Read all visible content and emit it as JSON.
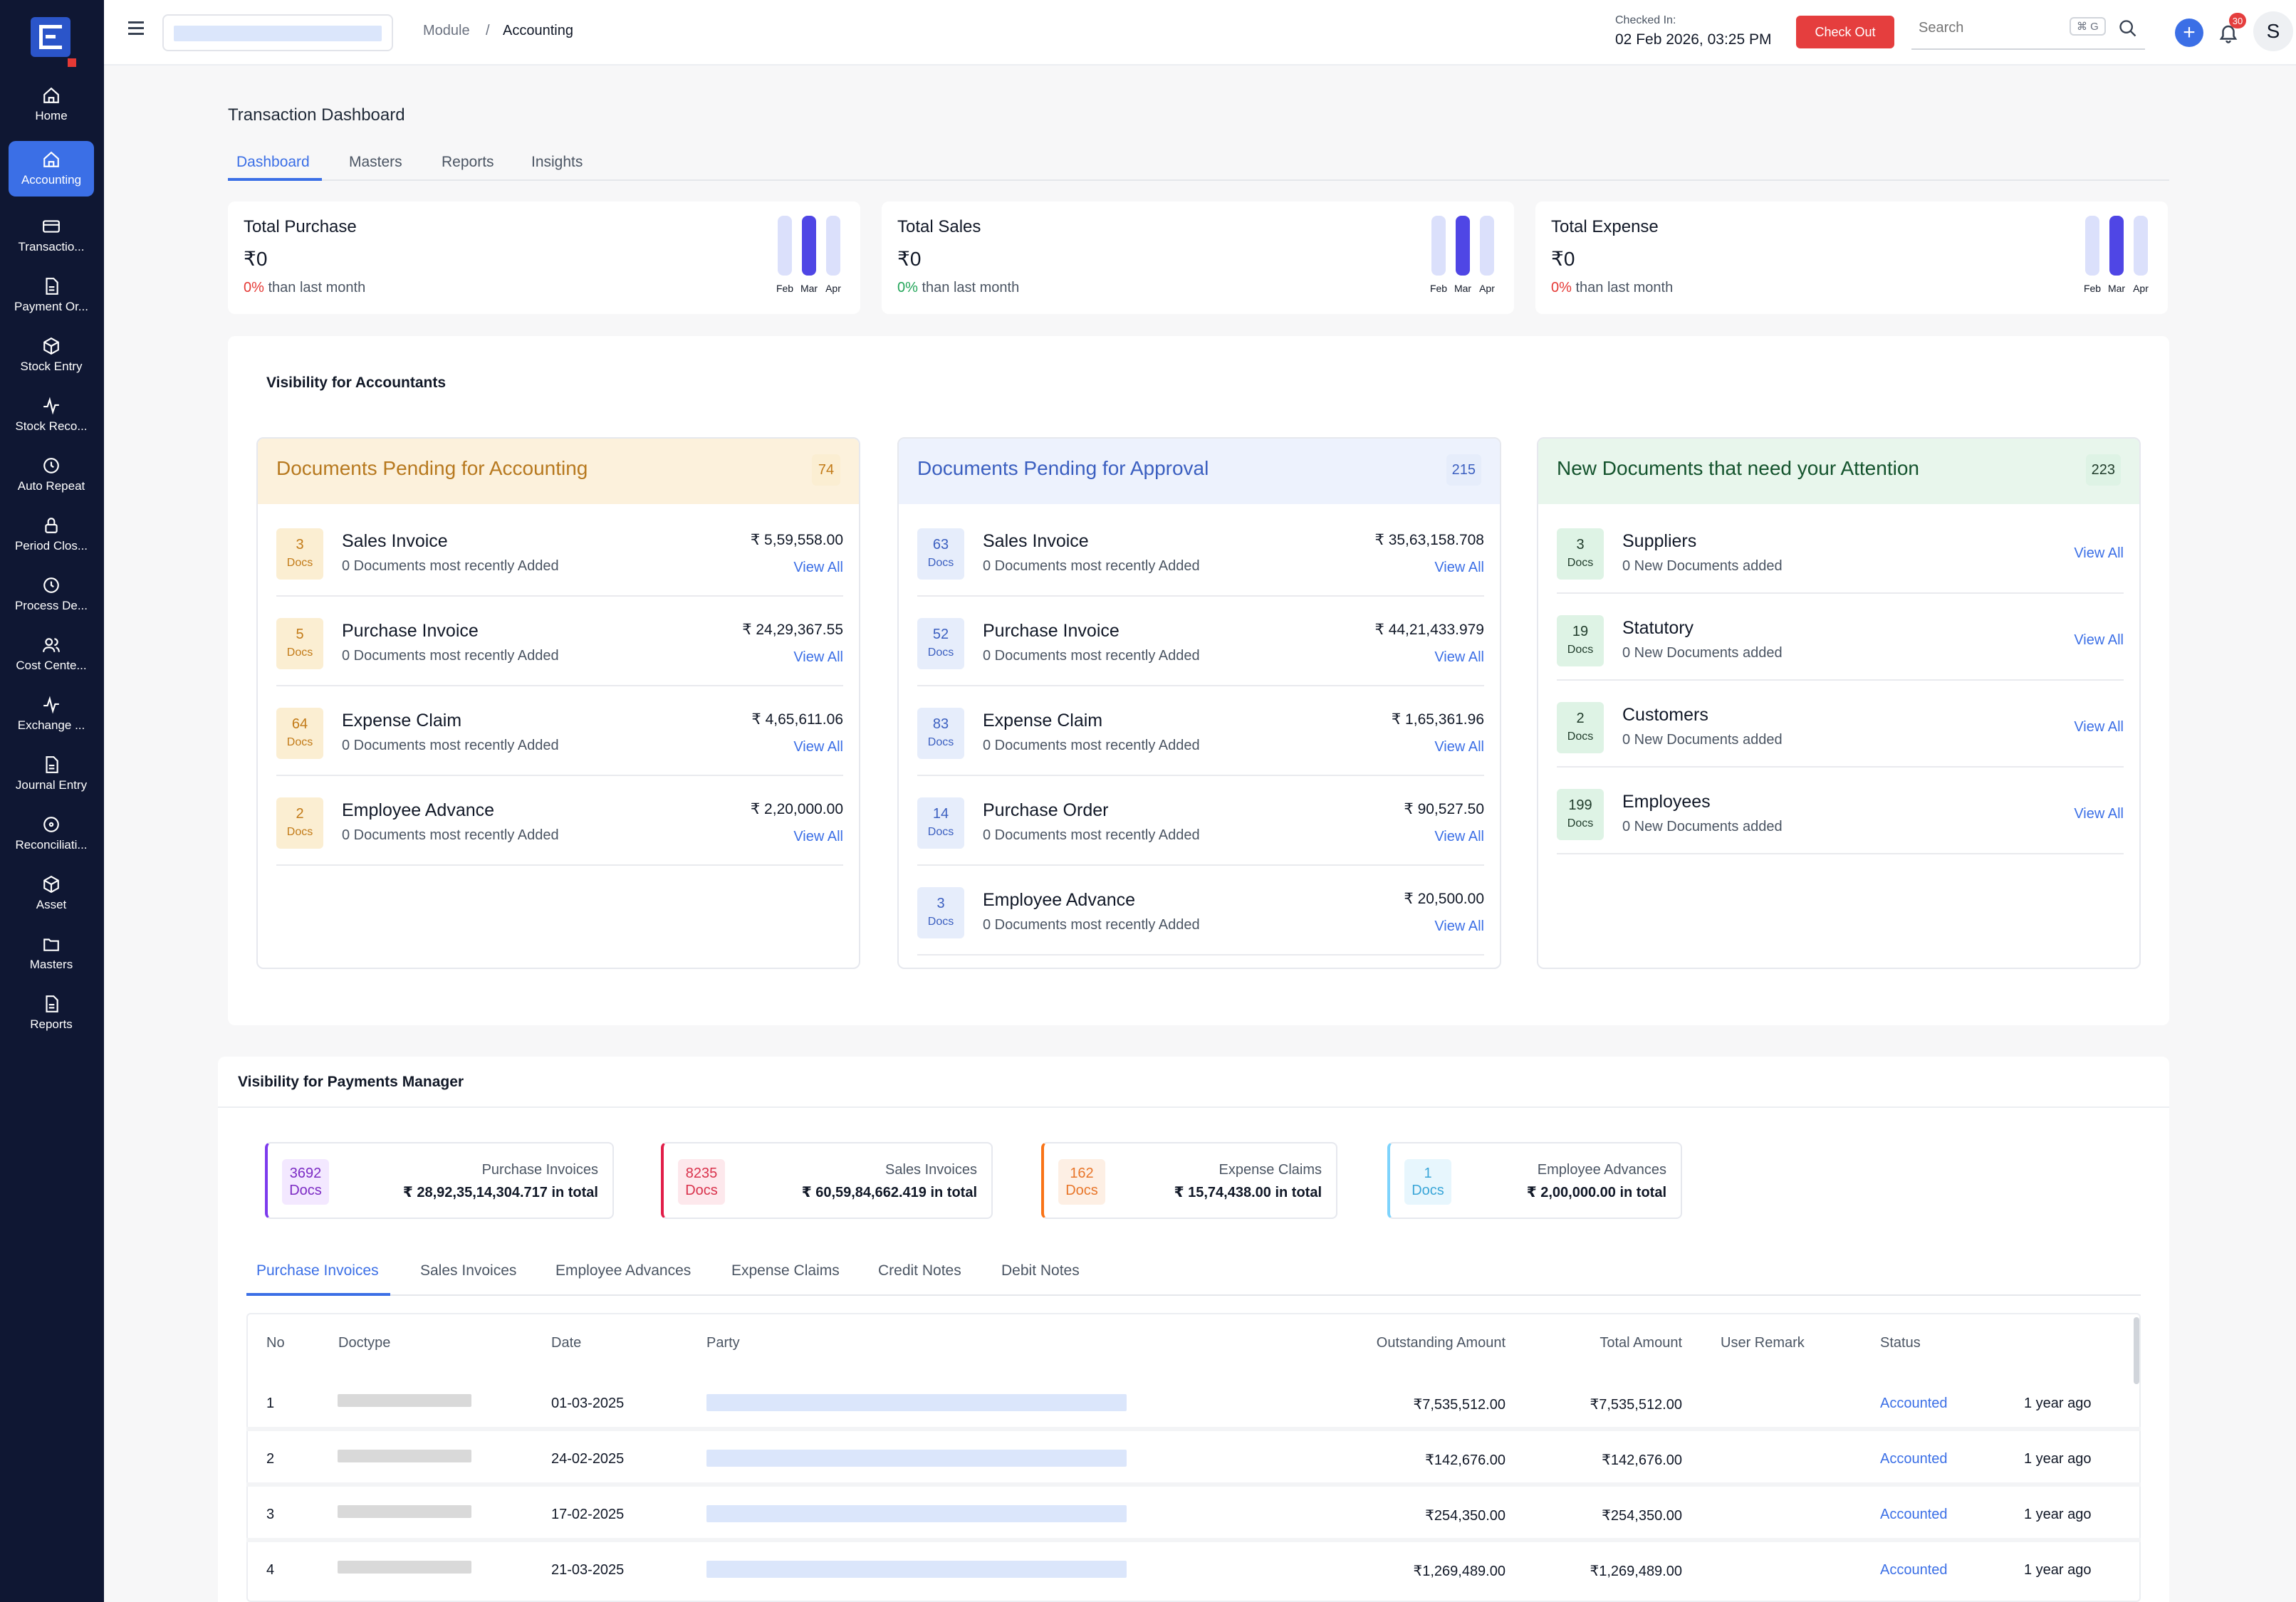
{
  "sidebar": {
    "items": [
      {
        "label": "Home",
        "icon": "home-icon"
      },
      {
        "label": "Accounting",
        "icon": "home-icon"
      },
      {
        "label": "Transactio...",
        "icon": "credit-card-icon"
      },
      {
        "label": "Payment Or...",
        "icon": "file-icon"
      },
      {
        "label": "Stock Entry",
        "icon": "cube-icon"
      },
      {
        "label": "Stock Reco...",
        "icon": "activity-icon"
      },
      {
        "label": "Auto Repeat",
        "icon": "clock-icon"
      },
      {
        "label": "Period Clos...",
        "icon": "lock-icon"
      },
      {
        "label": "Process De...",
        "icon": "clock-icon"
      },
      {
        "label": "Cost Cente...",
        "icon": "users-icon"
      },
      {
        "label": "Exchange ...",
        "icon": "activity-icon"
      },
      {
        "label": "Journal Entry",
        "icon": "file-icon"
      },
      {
        "label": "Reconciliati...",
        "icon": "target-icon"
      },
      {
        "label": "Asset",
        "icon": "cube-icon"
      },
      {
        "label": "Masters",
        "icon": "folder-icon"
      },
      {
        "label": "Reports",
        "icon": "file-icon"
      }
    ]
  },
  "header": {
    "breadcrumb_module": "Module",
    "breadcrumb_sep": "/",
    "breadcrumb_current": "Accounting",
    "checked_in_label": "Checked In:",
    "checked_in_time": "02 Feb 2026, 03:25 PM",
    "checkout_label": "Check Out",
    "search_placeholder": "Search",
    "search_shortcut": "⌘ G",
    "notification_count": "30",
    "avatar_initial": "S"
  },
  "page": {
    "title": "Transaction Dashboard",
    "tabs": [
      "Dashboard",
      "Masters",
      "Reports",
      "Insights"
    ]
  },
  "stats": [
    {
      "title": "Total Purchase",
      "value": "₹0",
      "pct": "0%",
      "pct_color": "#e53935",
      "sub": "than last month",
      "months": [
        "Feb",
        "Mar",
        "Apr"
      ]
    },
    {
      "title": "Total Sales",
      "value": "₹0",
      "pct": "0%",
      "pct_color": "#22a559",
      "sub": "than last month",
      "months": [
        "Feb",
        "Mar",
        "Apr"
      ]
    },
    {
      "title": "Total Expense",
      "value": "₹0",
      "pct": "0%",
      "pct_color": "#e53935",
      "sub": "than last month",
      "months": [
        "Feb",
        "Mar",
        "Apr"
      ]
    }
  ],
  "accountants": {
    "title": "Visibility for Accountants",
    "panels": [
      {
        "title": "Documents Pending for Accounting",
        "count": "74",
        "rows": [
          {
            "num": "3",
            "unit": "Docs",
            "name": "Sales Invoice",
            "sub": "0 Documents most recently Added",
            "amount": "₹ 5,59,558.00",
            "link": "View All"
          },
          {
            "num": "5",
            "unit": "Docs",
            "name": "Purchase Invoice",
            "sub": "0 Documents most recently Added",
            "amount": "₹ 24,29,367.55",
            "link": "View All"
          },
          {
            "num": "64",
            "unit": "Docs",
            "name": "Expense Claim",
            "sub": "0 Documents most recently Added",
            "amount": "₹ 4,65,611.06",
            "link": "View All"
          },
          {
            "num": "2",
            "unit": "Docs",
            "name": "Employee Advance",
            "sub": "0 Documents most recently Added",
            "amount": "₹ 2,20,000.00",
            "link": "View All"
          }
        ]
      },
      {
        "title": "Documents Pending for Approval",
        "count": "215",
        "rows": [
          {
            "num": "63",
            "unit": "Docs",
            "name": "Sales Invoice",
            "sub": "0 Documents most recently Added",
            "amount": "₹ 35,63,158.708",
            "link": "View All"
          },
          {
            "num": "52",
            "unit": "Docs",
            "name": "Purchase Invoice",
            "sub": "0 Documents most recently Added",
            "amount": "₹ 44,21,433.979",
            "link": "View All"
          },
          {
            "num": "83",
            "unit": "Docs",
            "name": "Expense Claim",
            "sub": "0 Documents most recently Added",
            "amount": "₹ 1,65,361.96",
            "link": "View All"
          },
          {
            "num": "14",
            "unit": "Docs",
            "name": "Purchase Order",
            "sub": "0 Documents most recently Added",
            "amount": "₹ 90,527.50",
            "link": "View All"
          },
          {
            "num": "3",
            "unit": "Docs",
            "name": "Employee Advance",
            "sub": "0 Documents most recently Added",
            "amount": "₹ 20,500.00",
            "link": "View All"
          }
        ]
      },
      {
        "title": "New Documents that need your Attention",
        "count": "223",
        "rows": [
          {
            "num": "3",
            "unit": "Docs",
            "name": "Suppliers",
            "sub": "0 New Documents added",
            "link": "View All"
          },
          {
            "num": "19",
            "unit": "Docs",
            "name": "Statutory",
            "sub": "0 New Documents added",
            "link": "View All"
          },
          {
            "num": "2",
            "unit": "Docs",
            "name": "Customers",
            "sub": "0 New Documents added",
            "link": "View All"
          },
          {
            "num": "199",
            "unit": "Docs",
            "name": "Employees",
            "sub": "0 New Documents added",
            "link": "View All"
          }
        ]
      }
    ]
  },
  "payments": {
    "title": "Visibility for Payments Manager",
    "cards": [
      {
        "num": "3692",
        "unit": "Docs",
        "label": "Purchase Invoices",
        "total": "₹ 28,92,35,14,304.717 in total"
      },
      {
        "num": "8235",
        "unit": "Docs",
        "label": "Sales Invoices",
        "total": "₹ 60,59,84,662.419 in total"
      },
      {
        "num": "162",
        "unit": "Docs",
        "label": "Expense Claims",
        "total": "₹ 15,74,438.00 in total"
      },
      {
        "num": "1",
        "unit": "Docs",
        "label": "Employee Advances",
        "total": "₹ 2,00,000.00 in total"
      }
    ],
    "tabs": [
      "Purchase Invoices",
      "Sales Invoices",
      "Employee Advances",
      "Expense Claims",
      "Credit Notes",
      "Debit Notes"
    ],
    "columns": [
      "No",
      "Doctype",
      "Date",
      "Party",
      "Outstanding Amount",
      "Total Amount",
      "User Remark",
      "Status"
    ],
    "rows": [
      {
        "no": "1",
        "date": "01-03-2025",
        "outstanding": "₹7,535,512.00",
        "total": "₹7,535,512.00",
        "status": "Accounted",
        "ago": "1 year ago"
      },
      {
        "no": "2",
        "date": "24-02-2025",
        "outstanding": "₹142,676.00",
        "total": "₹142,676.00",
        "status": "Accounted",
        "ago": "1 year ago"
      },
      {
        "no": "3",
        "date": "17-02-2025",
        "outstanding": "₹254,350.00",
        "total": "₹254,350.00",
        "status": "Accounted",
        "ago": "1 year ago"
      },
      {
        "no": "4",
        "date": "21-03-2025",
        "outstanding": "₹1,269,489.00",
        "total": "₹1,269,489.00",
        "status": "Accounted",
        "ago": "1 year ago"
      }
    ]
  },
  "colors": {
    "accounting_bg": "#fcf1dc",
    "accounting_title": "#b7791f",
    "accounting_badge_bg": "#fbeed2",
    "accounting_badge_fg": "#c27a17",
    "approval_bg": "#edf2fd",
    "approval_title": "#3b5fc0",
    "approval_badge_bg": "#e6edfb",
    "approval_badge_fg": "#3b5fc0",
    "attention_bg": "#e8f6ec",
    "attention_title": "#14532d",
    "attention_badge_bg": "#def3e5",
    "attention_badge_fg": "#1f3b2a",
    "link": "#3b6fe6"
  }
}
